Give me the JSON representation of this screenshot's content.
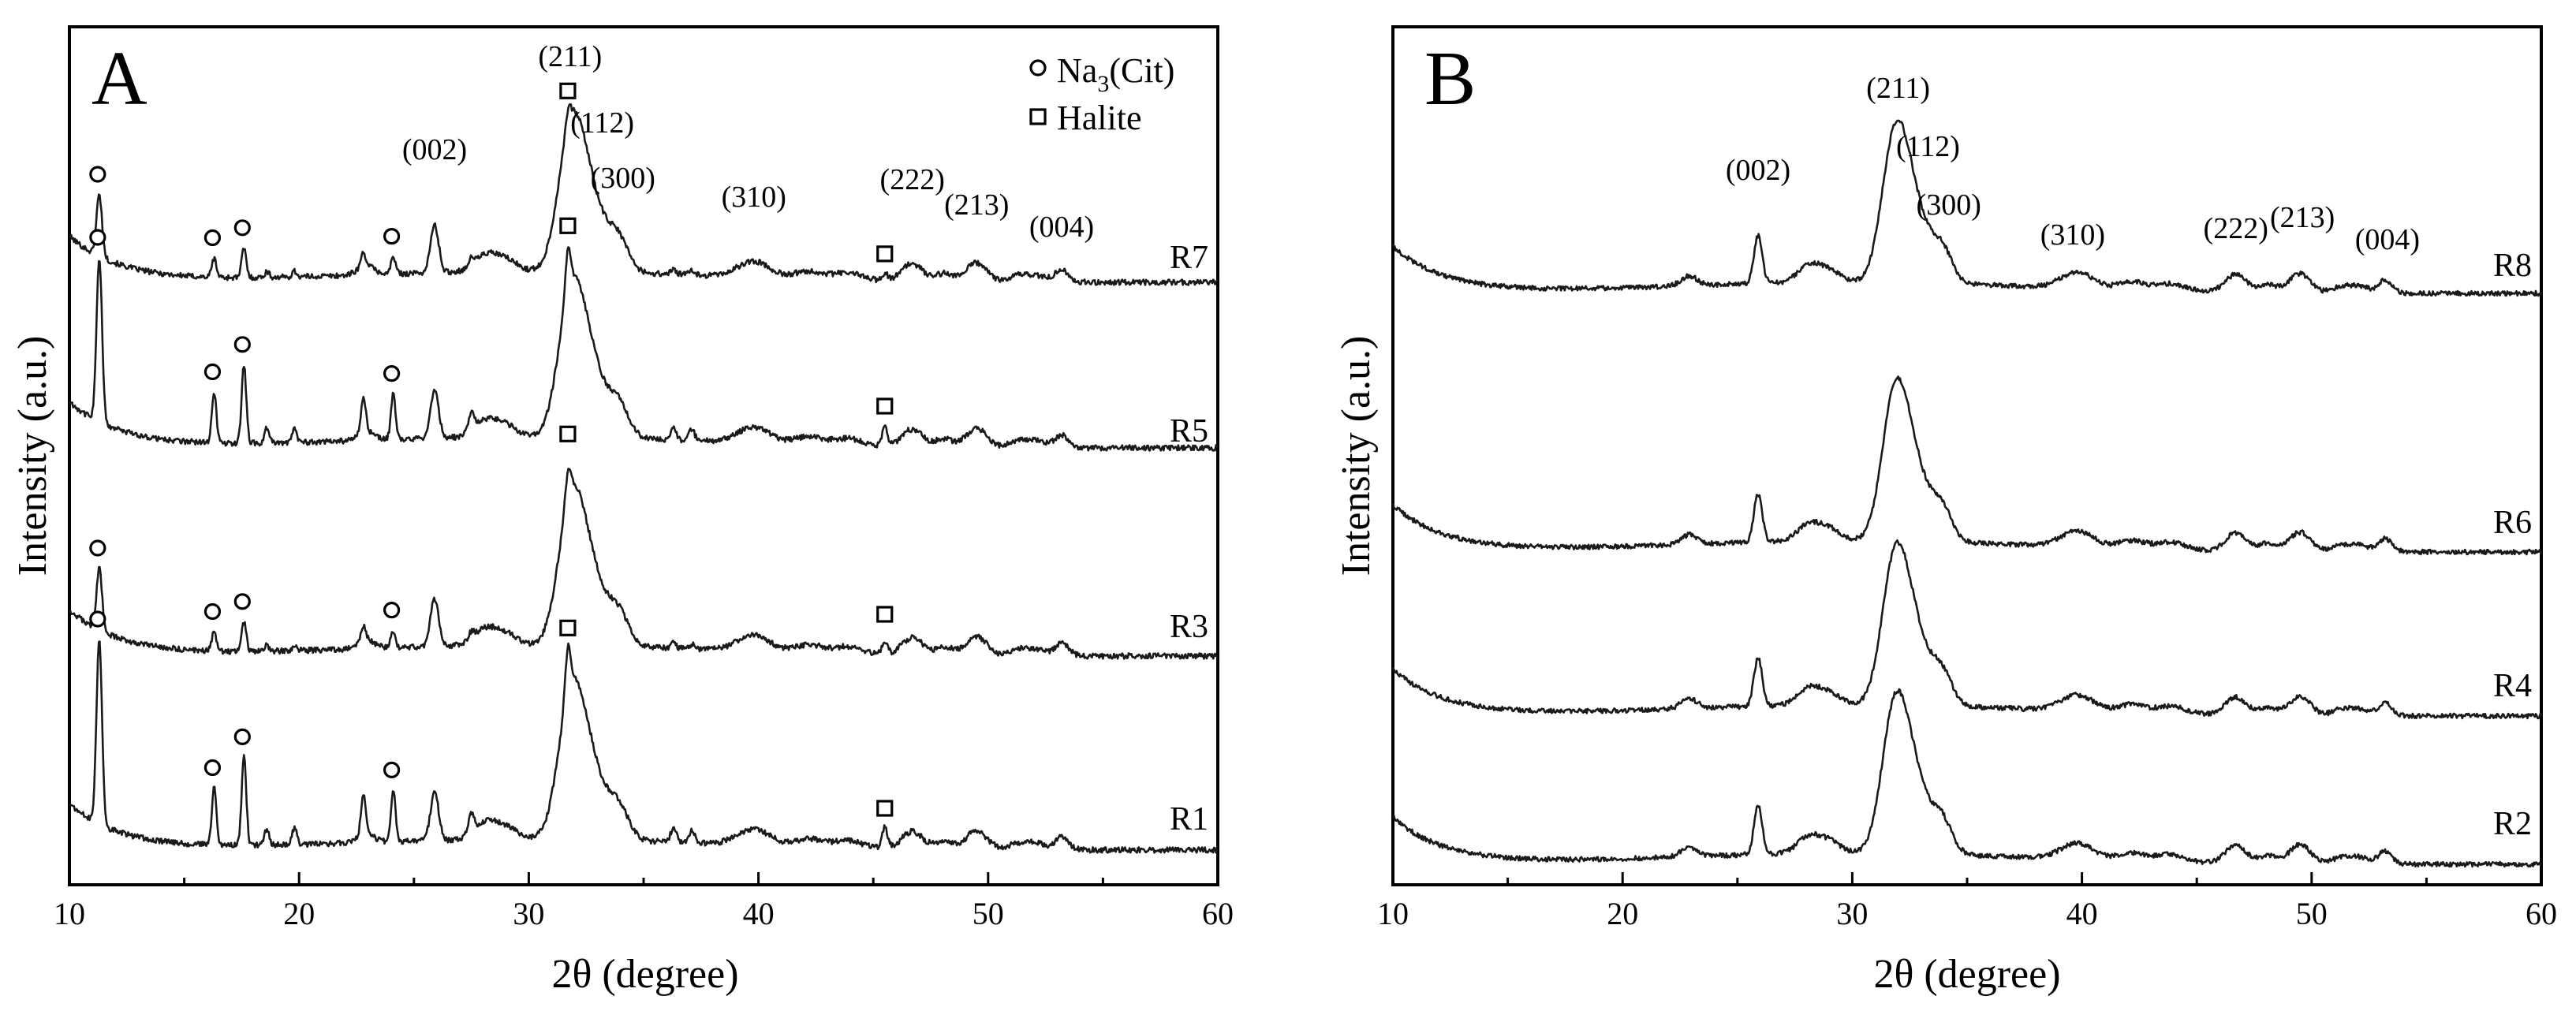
{
  "chart_data": [
    {
      "type": "line",
      "panel_label": "A",
      "xlabel": "2θ (degree)",
      "ylabel": "Intensity (a.u.)",
      "xlim": [
        10,
        60
      ],
      "xticks": [
        "10",
        "20",
        "30",
        "40",
        "50",
        "60"
      ],
      "legend": [
        {
          "marker": "circle",
          "label": "Na",
          "sub": "3",
          "suffix": "(Cit)"
        },
        {
          "marker": "square",
          "label": "Halite"
        }
      ],
      "series": [
        {
          "name": "R7",
          "na3cit_peaks": [
            11.3,
            16.3,
            17.6,
            24.1
          ],
          "halite_peaks": [
            31.7,
            45.5
          ],
          "base": 0.0,
          "na_strength": 0.6
        },
        {
          "name": "R5",
          "na3cit_peaks": [
            11.3,
            16.3,
            17.6,
            24.1
          ],
          "halite_peaks": [
            31.7,
            45.5
          ],
          "base": 0.0,
          "na_strength": 1.6
        },
        {
          "name": "R3",
          "na3cit_peaks": [
            11.3,
            16.3,
            17.6,
            24.1
          ],
          "halite_peaks": [
            31.7,
            45.5
          ],
          "base": 0.0,
          "na_strength": 0.6
        },
        {
          "name": "R1",
          "na3cit_peaks": [
            11.3,
            16.3,
            17.6,
            24.1
          ],
          "halite_peaks": [
            31.7,
            45.5
          ],
          "base": 0.0,
          "na_strength": 1.8
        }
      ],
      "hkl_labels": [
        {
          "text": "(002)",
          "x": 25.9
        },
        {
          "text": "(211)",
          "x": 31.8
        },
        {
          "text": "(112)",
          "x": 33.2
        },
        {
          "text": "(300)",
          "x": 34.1
        },
        {
          "text": "(310)",
          "x": 39.8
        },
        {
          "text": "(222)",
          "x": 46.7
        },
        {
          "text": "(213)",
          "x": 49.5
        },
        {
          "text": "(004)",
          "x": 53.2
        }
      ]
    },
    {
      "type": "line",
      "panel_label": "B",
      "xlabel": "2θ (degree)",
      "ylabel": "Intensity (a.u.)",
      "xlim": [
        10,
        60
      ],
      "xticks": [
        "10",
        "20",
        "30",
        "40",
        "50",
        "60"
      ],
      "series": [
        {
          "name": "R8"
        },
        {
          "name": "R6"
        },
        {
          "name": "R4"
        },
        {
          "name": "R2"
        }
      ],
      "hkl_labels": [
        {
          "text": "(002)",
          "x": 25.9
        },
        {
          "text": "(211)",
          "x": 32.0
        },
        {
          "text": "(112)",
          "x": 33.3
        },
        {
          "text": "(300)",
          "x": 34.2
        },
        {
          "text": "(310)",
          "x": 39.6
        },
        {
          "text": "(222)",
          "x": 46.7
        },
        {
          "text": "(213)",
          "x": 49.6
        },
        {
          "text": "(004)",
          "x": 53.3
        }
      ]
    }
  ]
}
